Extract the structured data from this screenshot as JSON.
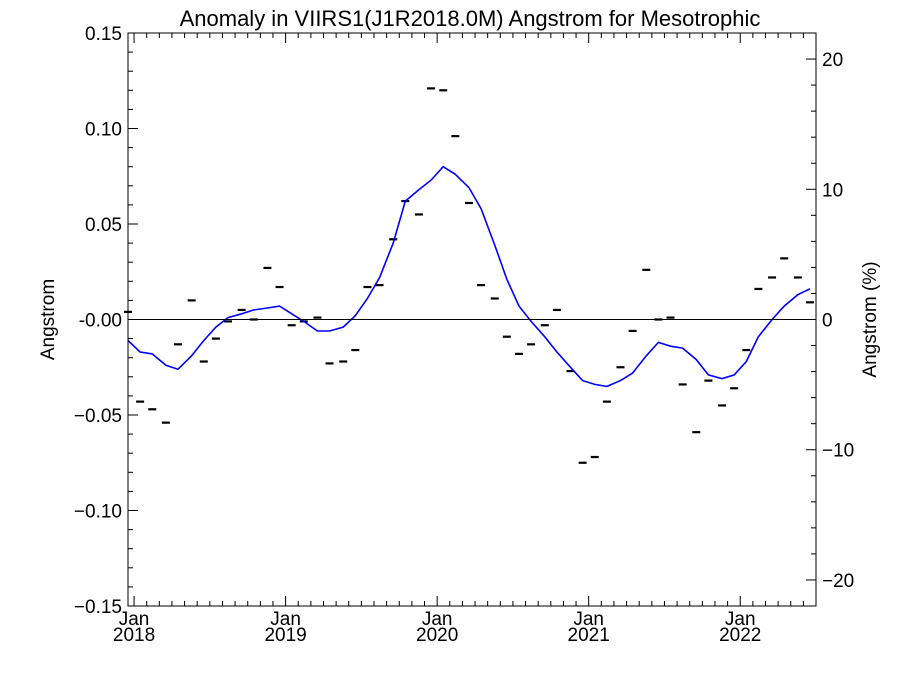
{
  "chart_data": {
    "type": "scatter",
    "title": "Anomaly in VIIRS1(J1R2018.0M) Angstrom for Mesotrophic",
    "ylabel": "Angstrom",
    "y2label": "Angstrom (%)",
    "xlabel": "",
    "xlim": [
      2017.96,
      2022.5
    ],
    "ylim": [
      -0.15,
      0.15
    ],
    "y2lim": [
      -22,
      22
    ],
    "x_ticks": [
      {
        "value": 2018.0,
        "month": "Jan",
        "year": "2018"
      },
      {
        "value": 2019.0,
        "month": "Jan",
        "year": "2019"
      },
      {
        "value": 2020.0,
        "month": "Jan",
        "year": "2020"
      },
      {
        "value": 2021.0,
        "month": "Jan",
        "year": "2021"
      },
      {
        "value": 2022.0,
        "month": "Jan",
        "year": "2022"
      }
    ],
    "y_ticks": [
      {
        "value": 0.15,
        "label": "0.15"
      },
      {
        "value": 0.1,
        "label": "0.10"
      },
      {
        "value": 0.05,
        "label": "0.05"
      },
      {
        "value": 0.0,
        "label": "-0.00"
      },
      {
        "value": -0.05,
        "label": "−0.05"
      },
      {
        "value": -0.1,
        "label": "−0.10"
      },
      {
        "value": -0.15,
        "label": "−0.15"
      }
    ],
    "y2_ticks": [
      {
        "value": 20,
        "label": "20"
      },
      {
        "value": 10,
        "label": "10"
      },
      {
        "value": 0,
        "label": "0"
      },
      {
        "value": -10,
        "label": "−10"
      },
      {
        "value": -20,
        "label": "−20"
      }
    ],
    "zero_line": 0,
    "grid": false,
    "series": [
      {
        "kind": "monthly-anomaly-marks",
        "color": "#000000",
        "x": [
          2017.96,
          2018.04,
          2018.12,
          2018.21,
          2018.29,
          2018.38,
          2018.46,
          2018.54,
          2018.62,
          2018.71,
          2018.79,
          2018.88,
          2018.96,
          2019.04,
          2019.12,
          2019.21,
          2019.29,
          2019.38,
          2019.46,
          2019.54,
          2019.62,
          2019.71,
          2019.79,
          2019.88,
          2019.96,
          2020.04,
          2020.12,
          2020.21,
          2020.29,
          2020.38,
          2020.46,
          2020.54,
          2020.62,
          2020.71,
          2020.79,
          2020.88,
          2020.96,
          2021.04,
          2021.12,
          2021.21,
          2021.29,
          2021.38,
          2021.46,
          2021.54,
          2021.62,
          2021.71,
          2021.79,
          2021.88,
          2021.96,
          2022.04,
          2022.12,
          2022.21,
          2022.29,
          2022.38,
          2022.46
        ],
        "y": [
          0.004,
          -0.043,
          -0.047,
          -0.054,
          -0.013,
          0.01,
          -0.022,
          -0.01,
          -0.001,
          0.005,
          0.0,
          0.027,
          0.017,
          -0.003,
          -0.001,
          0.001,
          -0.023,
          -0.022,
          -0.016,
          0.017,
          0.018,
          0.042,
          0.062,
          0.055,
          0.121,
          0.12,
          0.096,
          0.061,
          0.018,
          0.011,
          -0.009,
          -0.018,
          -0.013,
          -0.003,
          0.005,
          -0.027,
          -0.075,
          -0.072,
          -0.043,
          -0.025,
          -0.006,
          0.026,
          0.0,
          0.001,
          -0.034,
          -0.059,
          -0.032,
          -0.045,
          -0.036,
          -0.016,
          0.016,
          0.022,
          0.032,
          0.022,
          0.009
        ]
      },
      {
        "kind": "smoothed-line",
        "color": "#0000ff",
        "x": [
          2017.96,
          2018.04,
          2018.12,
          2018.21,
          2018.29,
          2018.38,
          2018.46,
          2018.54,
          2018.62,
          2018.71,
          2018.79,
          2018.88,
          2018.96,
          2019.04,
          2019.12,
          2019.21,
          2019.29,
          2019.38,
          2019.46,
          2019.54,
          2019.62,
          2019.71,
          2019.79,
          2019.88,
          2019.96,
          2020.04,
          2020.12,
          2020.21,
          2020.29,
          2020.38,
          2020.46,
          2020.54,
          2020.62,
          2020.71,
          2020.79,
          2020.88,
          2020.96,
          2021.04,
          2021.12,
          2021.21,
          2021.29,
          2021.38,
          2021.46,
          2021.54,
          2021.62,
          2021.71,
          2021.79,
          2021.88,
          2021.96,
          2022.04,
          2022.12,
          2022.21,
          2022.29,
          2022.38,
          2022.46
        ],
        "y": [
          -0.011,
          -0.017,
          -0.018,
          -0.024,
          -0.026,
          -0.019,
          -0.011,
          -0.004,
          0.001,
          0.003,
          0.005,
          0.006,
          0.007,
          0.003,
          -0.001,
          -0.006,
          -0.006,
          -0.004,
          0.002,
          0.011,
          0.022,
          0.04,
          0.062,
          0.068,
          0.073,
          0.08,
          0.076,
          0.069,
          0.058,
          0.039,
          0.021,
          0.007,
          -0.001,
          -0.009,
          -0.017,
          -0.025,
          -0.032,
          -0.034,
          -0.035,
          -0.032,
          -0.028,
          -0.019,
          -0.012,
          -0.014,
          -0.015,
          -0.021,
          -0.029,
          -0.031,
          -0.029,
          -0.022,
          -0.009,
          0.0,
          0.007,
          0.013,
          0.016
        ]
      }
    ]
  }
}
